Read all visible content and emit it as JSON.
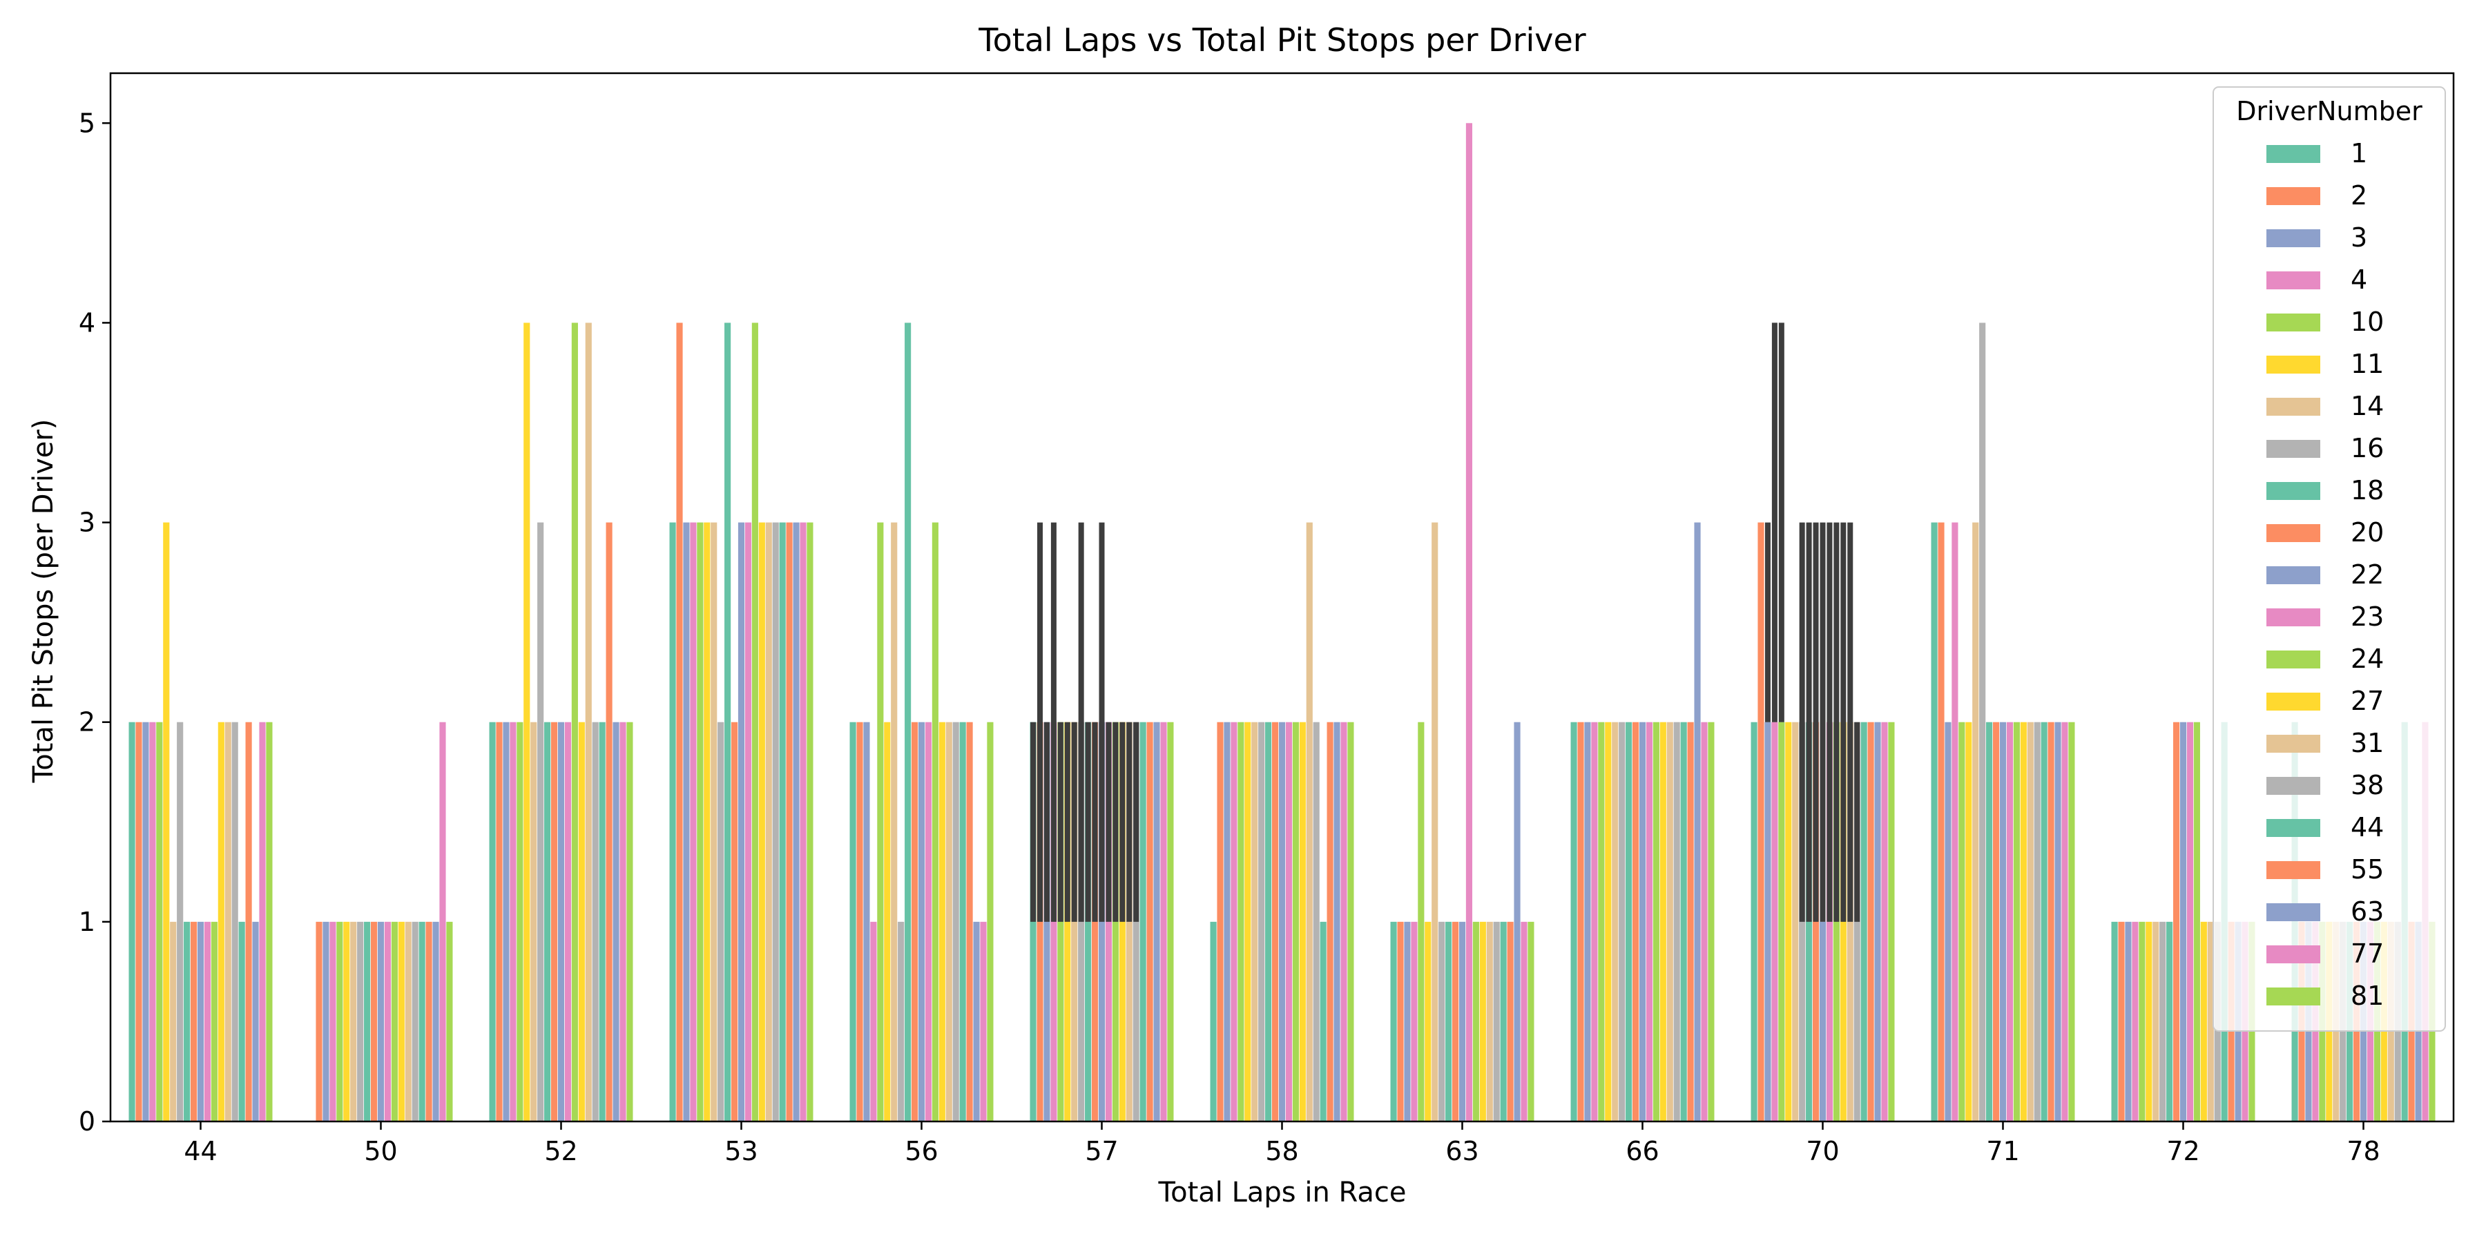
{
  "chart_data": {
    "type": "bar",
    "title": "Total Laps vs Total Pit Stops per Driver",
    "xlabel": "Total Laps in Race",
    "ylabel": "Total Pit Stops (per Driver)",
    "ylim": [
      0,
      5.25
    ],
    "yticks": [
      0,
      1,
      2,
      3,
      4,
      5
    ],
    "grid": false,
    "legend": {
      "title": "DriverNumber",
      "position": "top-right"
    },
    "categories": [
      "44",
      "50",
      "52",
      "53",
      "56",
      "57",
      "58",
      "63",
      "66",
      "70",
      "71",
      "72",
      "78"
    ],
    "palette": [
      "#66c2a5",
      "#fc8d62",
      "#8da0cb",
      "#e78ac3",
      "#a6d854",
      "#ffd92f",
      "#e5c494",
      "#b3b3b3"
    ],
    "series": [
      {
        "name": "1",
        "values": [
          2,
          null,
          2,
          3,
          2,
          2,
          1,
          1,
          2,
          2,
          3,
          1,
          2
        ]
      },
      {
        "name": "2",
        "values": [
          2,
          1,
          2,
          4,
          2,
          2,
          2,
          1,
          2,
          3,
          3,
          1,
          1
        ]
      },
      {
        "name": "3",
        "values": [
          2,
          1,
          2,
          3,
          2,
          2,
          2,
          1,
          2,
          2,
          2,
          1,
          1
        ]
      },
      {
        "name": "4",
        "values": [
          2,
          1,
          2,
          3,
          1,
          2,
          2,
          1,
          2,
          2,
          3,
          1,
          1
        ]
      },
      {
        "name": "10",
        "values": [
          2,
          1,
          2,
          3,
          3,
          2,
          2,
          2,
          2,
          2,
          2,
          1,
          1
        ]
      },
      {
        "name": "11",
        "values": [
          3,
          1,
          4,
          3,
          2,
          2,
          2,
          1,
          2,
          2,
          2,
          1,
          1
        ]
      },
      {
        "name": "14",
        "values": [
          1,
          1,
          2,
          3,
          3,
          2,
          2,
          3,
          2,
          2,
          3,
          1,
          1
        ]
      },
      {
        "name": "16",
        "values": [
          2,
          1,
          3,
          2,
          1,
          2,
          2,
          1,
          2,
          2,
          4,
          1,
          1
        ]
      },
      {
        "name": "18",
        "values": [
          1,
          1,
          2,
          4,
          4,
          2,
          2,
          1,
          2,
          2,
          2,
          1,
          1
        ]
      },
      {
        "name": "20",
        "values": [
          1,
          1,
          2,
          2,
          2,
          2,
          2,
          1,
          2,
          2,
          2,
          2,
          1
        ]
      },
      {
        "name": "22",
        "values": [
          1,
          1,
          2,
          3,
          2,
          2,
          2,
          1,
          2,
          1,
          2,
          2,
          1
        ]
      },
      {
        "name": "23",
        "values": [
          1,
          1,
          2,
          3,
          2,
          2,
          2,
          5,
          2,
          2,
          2,
          2,
          1
        ]
      },
      {
        "name": "24",
        "values": [
          1,
          1,
          4,
          4,
          3,
          2,
          2,
          1,
          2,
          2,
          2,
          2,
          1
        ]
      },
      {
        "name": "27",
        "values": [
          2,
          1,
          2,
          3,
          2,
          2,
          2,
          1,
          2,
          2,
          2,
          1,
          1
        ]
      },
      {
        "name": "31",
        "values": [
          2,
          1,
          4,
          3,
          2,
          2,
          3,
          1,
          2,
          2,
          2,
          1,
          1
        ]
      },
      {
        "name": "38",
        "values": [
          2,
          1,
          2,
          3,
          2,
          2,
          2,
          1,
          2,
          2,
          2,
          1,
          1
        ]
      },
      {
        "name": "44",
        "values": [
          1,
          1,
          2,
          3,
          2,
          2,
          1,
          1,
          2,
          2,
          2,
          2,
          2
        ]
      },
      {
        "name": "55",
        "values": [
          2,
          1,
          3,
          3,
          2,
          2,
          2,
          1,
          2,
          2,
          2,
          1,
          1
        ]
      },
      {
        "name": "63",
        "values": [
          1,
          1,
          2,
          3,
          1,
          2,
          2,
          2,
          3,
          2,
          2,
          1,
          1
        ]
      },
      {
        "name": "77",
        "values": [
          2,
          2,
          2,
          3,
          1,
          2,
          2,
          1,
          2,
          2,
          2,
          1,
          2
        ]
      },
      {
        "name": "81",
        "values": [
          2,
          1,
          2,
          3,
          2,
          2,
          2,
          1,
          2,
          2,
          2,
          1,
          1
        ]
      }
    ],
    "error_bars": [
      {
        "category": "57",
        "series": "1",
        "range": [
          1,
          2
        ]
      },
      {
        "category": "57",
        "series": "2",
        "range": [
          1,
          3
        ]
      },
      {
        "category": "57",
        "series": "3",
        "range": [
          1,
          2
        ]
      },
      {
        "category": "57",
        "series": "4",
        "range": [
          1,
          3
        ]
      },
      {
        "category": "57",
        "series": "10",
        "range": [
          1,
          2
        ]
      },
      {
        "category": "57",
        "series": "11",
        "range": [
          1,
          2
        ]
      },
      {
        "category": "57",
        "series": "14",
        "range": [
          1,
          2
        ]
      },
      {
        "category": "57",
        "series": "16",
        "range": [
          1,
          3
        ]
      },
      {
        "category": "57",
        "series": "18",
        "range": [
          1,
          2
        ]
      },
      {
        "category": "57",
        "series": "20",
        "range": [
          1,
          2
        ]
      },
      {
        "category": "57",
        "series": "22",
        "range": [
          1,
          3
        ]
      },
      {
        "category": "57",
        "series": "23",
        "range": [
          1,
          2
        ]
      },
      {
        "category": "57",
        "series": "24",
        "range": [
          1,
          2
        ]
      },
      {
        "category": "57",
        "series": "27",
        "range": [
          1,
          2
        ]
      },
      {
        "category": "57",
        "series": "31",
        "range": [
          1,
          2
        ]
      },
      {
        "category": "57",
        "series": "38",
        "range": [
          1,
          2
        ]
      },
      {
        "category": "70",
        "series": "3",
        "range": [
          2,
          3
        ]
      },
      {
        "category": "70",
        "series": "4",
        "range": [
          2,
          4
        ]
      },
      {
        "category": "70",
        "series": "10",
        "range": [
          2,
          4
        ]
      },
      {
        "category": "70",
        "series": "16",
        "range": [
          1,
          3
        ]
      },
      {
        "category": "70",
        "series": "18",
        "range": [
          1,
          3
        ]
      },
      {
        "category": "70",
        "series": "20",
        "range": [
          1,
          3
        ]
      },
      {
        "category": "70",
        "series": "22",
        "range": [
          1,
          3
        ]
      },
      {
        "category": "70",
        "series": "23",
        "range": [
          1,
          3
        ]
      },
      {
        "category": "70",
        "series": "24",
        "range": [
          1,
          3
        ]
      },
      {
        "category": "70",
        "series": "27",
        "range": [
          1,
          3
        ]
      },
      {
        "category": "70",
        "series": "31",
        "range": [
          1,
          3
        ]
      },
      {
        "category": "70",
        "series": "38",
        "range": [
          1,
          2
        ]
      }
    ]
  }
}
